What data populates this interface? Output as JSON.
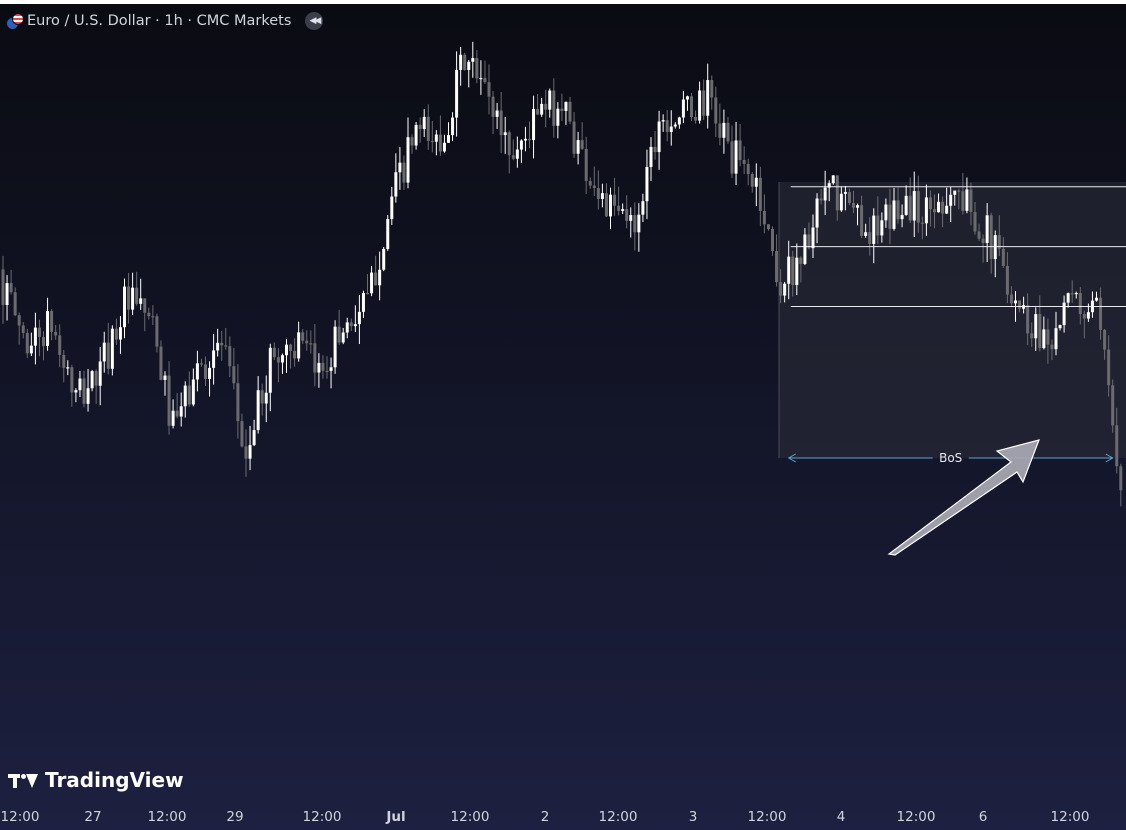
{
  "header": {
    "symbol_title": "Euro / U.S. Dollar · 1h · CMC Markets",
    "flag_icon": "eur-usd-flag-icon",
    "rewind_icon": "rewind-icon"
  },
  "brand": {
    "logo_text": "TradingView"
  },
  "annotation": {
    "bos_label": "BoS",
    "arrow": "pointing to break of structure"
  },
  "colors": {
    "bull": "#ffffff",
    "bear": "#6b6b6f",
    "bos_line": "#5aa5c6",
    "zone_fill": "#2a2b38",
    "level_line": "#ffffff",
    "arrow_fill": "#a9aab4"
  },
  "x_axis": {
    "ticks": [
      {
        "label": "12:00",
        "bold": false
      },
      {
        "label": "27",
        "bold": false
      },
      {
        "label": "12:00",
        "bold": false
      },
      {
        "label": "29",
        "bold": false
      },
      {
        "label": "12:00",
        "bold": false
      },
      {
        "label": "Jul",
        "bold": true
      },
      {
        "label": "12:00",
        "bold": false
      },
      {
        "label": "2",
        "bold": false
      },
      {
        "label": "12:00",
        "bold": false
      },
      {
        "label": "3",
        "bold": false
      },
      {
        "label": "12:00",
        "bold": false
      },
      {
        "label": "4",
        "bold": false
      },
      {
        "label": "12:00",
        "bold": false
      },
      {
        "label": "6",
        "bold": false
      },
      {
        "label": "12:00",
        "bold": false
      }
    ]
  },
  "chart_data": {
    "type": "candlestick",
    "title": "Euro / U.S. Dollar · 1h · CMC Markets",
    "interval": "1h",
    "x_ticks": [
      "12:00",
      "27",
      "12:00",
      "29",
      "12:00",
      "Jul",
      "12:00",
      "2",
      "12:00",
      "3",
      "12:00",
      "4",
      "12:00",
      "6",
      "12:00"
    ],
    "price_axis": "not shown",
    "close_path_note": "relative price level, 0 = chart bottom, 1 = chart top",
    "close_path_start": 0.58,
    "close_path": [
      [
        0,
        0.55
      ],
      [
        6,
        0.45
      ],
      [
        12,
        0.48
      ],
      [
        18,
        0.35
      ],
      [
        24,
        0.4
      ],
      [
        30,
        0.52
      ],
      [
        36,
        0.5
      ],
      [
        42,
        0.3
      ],
      [
        48,
        0.4
      ],
      [
        54,
        0.45
      ],
      [
        60,
        0.25
      ],
      [
        66,
        0.42
      ],
      [
        72,
        0.45
      ],
      [
        78,
        0.4
      ],
      [
        84,
        0.48
      ],
      [
        90,
        0.52
      ],
      [
        96,
        0.7
      ],
      [
        102,
        0.82
      ],
      [
        108,
        0.8
      ],
      [
        114,
        0.95
      ],
      [
        120,
        0.88
      ],
      [
        126,
        0.78
      ],
      [
        132,
        0.85
      ],
      [
        138,
        0.87
      ],
      [
        144,
        0.76
      ],
      [
        150,
        0.68
      ],
      [
        156,
        0.66
      ],
      [
        162,
        0.85
      ],
      [
        168,
        0.85
      ],
      [
        174,
        0.88
      ],
      [
        180,
        0.78
      ],
      [
        186,
        0.73
      ],
      [
        192,
        0.55
      ],
      [
        198,
        0.62
      ],
      [
        204,
        0.72
      ],
      [
        210,
        0.68
      ],
      [
        216,
        0.64
      ],
      [
        222,
        0.7
      ],
      [
        228,
        0.68
      ],
      [
        234,
        0.72
      ],
      [
        240,
        0.68
      ],
      [
        246,
        0.6
      ],
      [
        252,
        0.5
      ],
      [
        258,
        0.46
      ],
      [
        264,
        0.52
      ],
      [
        270,
        0.5
      ],
      [
        276,
        0.22
      ]
    ],
    "candle_count": 277,
    "bos_range": {
      "from_index": 194,
      "to_index": 274
    },
    "levels": [
      0.725,
      0.62,
      0.515
    ]
  }
}
